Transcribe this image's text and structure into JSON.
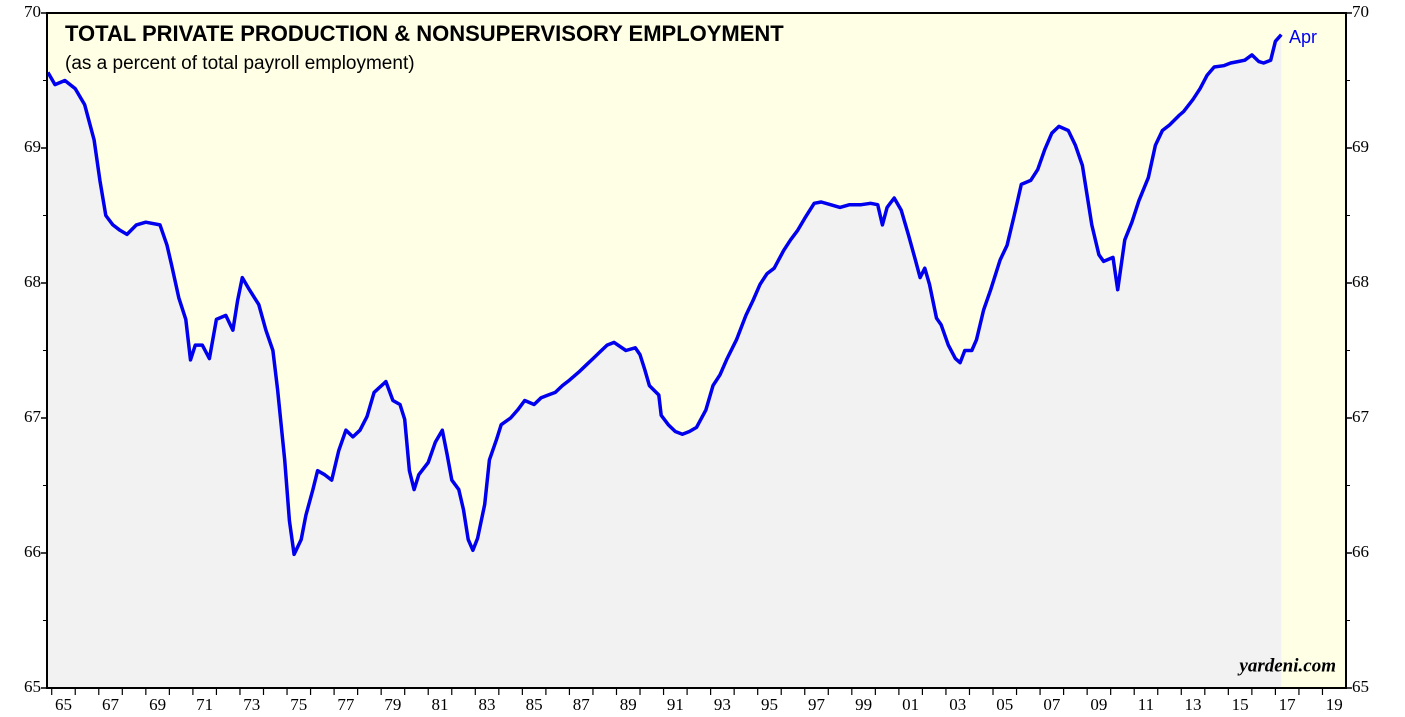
{
  "chart_data": {
    "type": "line",
    "title": "TOTAL PRIVATE PRODUCTION & NONSUPERVISORY EMPLOYMENT",
    "subtitle": "(as a percent of total payroll employment)",
    "annotation": "Apr",
    "source": "yardeni.com",
    "color": "#0000ee",
    "xlim": [
      1964.8,
      2020.0
    ],
    "ylim": [
      65,
      70
    ],
    "yticks": [
      65,
      66,
      67,
      68,
      69,
      70
    ],
    "xticks": [
      {
        "value": 1965,
        "label": "65"
      },
      {
        "value": 1967,
        "label": "67"
      },
      {
        "value": 1969,
        "label": "69"
      },
      {
        "value": 1971,
        "label": "71"
      },
      {
        "value": 1973,
        "label": "73"
      },
      {
        "value": 1975,
        "label": "75"
      },
      {
        "value": 1977,
        "label": "77"
      },
      {
        "value": 1979,
        "label": "79"
      },
      {
        "value": 1981,
        "label": "81"
      },
      {
        "value": 1983,
        "label": "83"
      },
      {
        "value": 1985,
        "label": "85"
      },
      {
        "value": 1987,
        "label": "87"
      },
      {
        "value": 1989,
        "label": "89"
      },
      {
        "value": 1991,
        "label": "91"
      },
      {
        "value": 1993,
        "label": "93"
      },
      {
        "value": 1995,
        "label": "95"
      },
      {
        "value": 1997,
        "label": "97"
      },
      {
        "value": 1999,
        "label": "99"
      },
      {
        "value": 2001,
        "label": "01"
      },
      {
        "value": 2003,
        "label": "03"
      },
      {
        "value": 2005,
        "label": "05"
      },
      {
        "value": 2007,
        "label": "07"
      },
      {
        "value": 2009,
        "label": "09"
      },
      {
        "value": 2011,
        "label": "11"
      },
      {
        "value": 2013,
        "label": "13"
      },
      {
        "value": 2015,
        "label": "15"
      },
      {
        "value": 2017,
        "label": "17"
      },
      {
        "value": 2019,
        "label": "19"
      }
    ],
    "x": [
      1964.84,
      1965.14,
      1965.56,
      1966.0,
      1966.4,
      1966.8,
      1967.05,
      1967.3,
      1967.6,
      1967.9,
      1968.2,
      1968.6,
      1969.0,
      1969.6,
      1969.9,
      1970.1,
      1970.4,
      1970.7,
      1970.9,
      1971.1,
      1971.4,
      1971.7,
      1972.0,
      1972.4,
      1972.7,
      1972.9,
      1973.1,
      1973.4,
      1973.8,
      1974.1,
      1974.4,
      1974.6,
      1974.9,
      1975.1,
      1975.3,
      1975.6,
      1975.8,
      1976.1,
      1976.3,
      1976.6,
      1976.9,
      1977.2,
      1977.5,
      1977.8,
      1978.1,
      1978.4,
      1978.7,
      1979.2,
      1979.5,
      1979.8,
      1980.0,
      1980.2,
      1980.4,
      1980.6,
      1981.0,
      1981.3,
      1981.6,
      1981.8,
      1982.0,
      1982.3,
      1982.5,
      1982.7,
      1982.9,
      1983.1,
      1983.4,
      1983.6,
      1983.9,
      1984.1,
      1984.5,
      1984.8,
      1985.1,
      1985.5,
      1985.8,
      1986.1,
      1986.4,
      1986.7,
      1987.0,
      1987.4,
      1987.7,
      1988.0,
      1988.3,
      1988.6,
      1988.9,
      1989.4,
      1989.8,
      1990.0,
      1990.2,
      1990.4,
      1990.8,
      1990.9,
      1991.2,
      1991.5,
      1991.8,
      1992.1,
      1992.4,
      1992.8,
      1993.1,
      1993.4,
      1993.7,
      1994.1,
      1994.5,
      1994.8,
      1995.1,
      1995.4,
      1995.7,
      1996.1,
      1996.4,
      1996.7,
      1997.0,
      1997.4,
      1997.7,
      1998.1,
      1998.5,
      1998.9,
      1999.4,
      1999.8,
      2000.1,
      2000.3,
      2000.5,
      2000.8,
      2001.1,
      2001.4,
      2001.7,
      2001.9,
      2002.1,
      2002.3,
      2002.6,
      2002.8,
      2003.1,
      2003.4,
      2003.6,
      2003.8,
      2004.1,
      2004.3,
      2004.6,
      2004.9,
      2005.3,
      2005.6,
      2005.9,
      2006.2,
      2006.6,
      2006.9,
      2007.2,
      2007.5,
      2007.8,
      2008.2,
      2008.5,
      2008.8,
      2009.0,
      2009.2,
      2009.5,
      2009.7,
      2010.1,
      2010.3,
      2010.6,
      2010.9,
      2011.2,
      2011.6,
      2011.9,
      2012.2,
      2012.5,
      2012.9,
      2013.1,
      2013.5,
      2013.8,
      2014.1,
      2014.4,
      2014.8,
      2015.1,
      2015.4,
      2015.7,
      2016.0,
      2016.3,
      2016.5,
      2016.8,
      2017.0,
      2017.25
    ],
    "values": [
      69.56,
      69.47,
      69.5,
      69.44,
      69.32,
      69.06,
      68.76,
      68.5,
      68.43,
      68.39,
      68.36,
      68.43,
      68.45,
      68.43,
      68.28,
      68.13,
      67.89,
      67.73,
      67.43,
      67.54,
      67.54,
      67.44,
      67.73,
      67.76,
      67.65,
      67.87,
      68.04,
      67.95,
      67.84,
      67.65,
      67.5,
      67.21,
      66.69,
      66.24,
      65.99,
      66.1,
      66.28,
      66.47,
      66.61,
      66.58,
      66.54,
      66.76,
      66.91,
      66.86,
      66.91,
      67.01,
      67.19,
      67.27,
      67.13,
      67.1,
      66.99,
      66.61,
      66.47,
      66.58,
      66.67,
      66.82,
      66.91,
      66.73,
      66.54,
      66.47,
      66.32,
      66.1,
      66.02,
      66.11,
      66.36,
      66.69,
      66.84,
      66.95,
      67.0,
      67.06,
      67.13,
      67.1,
      67.15,
      67.17,
      67.19,
      67.24,
      67.28,
      67.34,
      67.39,
      67.44,
      67.49,
      67.54,
      67.56,
      67.5,
      67.52,
      67.47,
      67.36,
      67.24,
      67.17,
      67.02,
      66.95,
      66.9,
      66.88,
      66.9,
      66.93,
      67.06,
      67.24,
      67.32,
      67.44,
      67.58,
      67.76,
      67.87,
      67.99,
      68.07,
      68.11,
      68.24,
      68.32,
      68.39,
      68.48,
      68.59,
      68.6,
      68.58,
      68.56,
      68.58,
      68.58,
      68.59,
      68.58,
      68.43,
      68.56,
      68.63,
      68.54,
      68.36,
      68.17,
      68.04,
      68.11,
      67.99,
      67.74,
      67.69,
      67.54,
      67.44,
      67.41,
      67.5,
      67.5,
      67.58,
      67.8,
      67.95,
      68.17,
      68.28,
      68.5,
      68.73,
      68.76,
      68.84,
      68.99,
      69.11,
      69.16,
      69.13,
      69.02,
      68.87,
      68.65,
      68.43,
      68.21,
      68.16,
      68.19,
      67.95,
      68.32,
      68.45,
      68.61,
      68.78,
      69.02,
      69.13,
      69.17,
      69.24,
      69.27,
      69.36,
      69.44,
      69.54,
      69.6,
      69.61,
      69.63,
      69.64,
      69.65,
      69.69,
      69.64,
      69.63,
      69.65,
      69.79,
      69.84
    ]
  }
}
